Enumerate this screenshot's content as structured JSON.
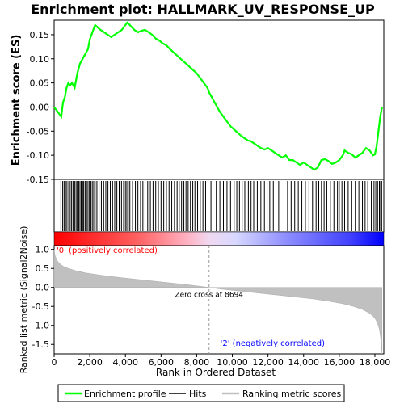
{
  "chart_data": {
    "type": "line",
    "title": "Enrichment plot: HALLMARK_UV_RESPONSE_UP",
    "x_axis": {
      "label": "Rank in Ordered Dataset",
      "range": [
        0,
        18500
      ],
      "ticks": [
        0,
        2000,
        4000,
        6000,
        8000,
        10000,
        12000,
        14000,
        16000,
        18000
      ],
      "tick_labels": [
        "0",
        "2,000",
        "4,000",
        "6,000",
        "8,000",
        "10,000",
        "12,000",
        "14,000",
        "16,000",
        "18,000"
      ]
    },
    "enrichment_panel": {
      "ylabel": "Enrichment score (ES)",
      "ylim": [
        -0.15,
        0.18
      ],
      "y_ticks": [
        -0.15,
        -0.1,
        -0.05,
        0.0,
        0.05,
        0.1,
        0.15
      ],
      "y_tick_labels": [
        "-0.15",
        "-0.10",
        "-0.05",
        "0.00",
        "0.05",
        "0.10",
        "0.15"
      ],
      "line_color": "#00ff00",
      "series": {
        "name": "Enrichment profile",
        "x": [
          0,
          200,
          400,
          500,
          600,
          700,
          800,
          900,
          1000,
          1150,
          1300,
          1450,
          1600,
          1750,
          1900,
          2000,
          2100,
          2200,
          2300,
          2450,
          2600,
          2800,
          3000,
          3200,
          3400,
          3600,
          3800,
          3900,
          4000,
          4100,
          4200,
          4300,
          4500,
          4700,
          4900,
          5100,
          5300,
          5500,
          5700,
          5900,
          6100,
          6300,
          6500,
          6800,
          7100,
          7400,
          7700,
          8000,
          8300,
          8600,
          8700,
          9000,
          9300,
          9600,
          9900,
          10200,
          10500,
          10700,
          10900,
          11000,
          11200,
          11400,
          11600,
          11800,
          12000,
          12200,
          12400,
          12600,
          12800,
          13000,
          13200,
          13400,
          13600,
          13800,
          14000,
          14200,
          14400,
          14600,
          14800,
          15000,
          15200,
          15400,
          15600,
          15800,
          16000,
          16200,
          16300,
          16500,
          16700,
          16900,
          17100,
          17300,
          17500,
          17700,
          17900,
          18000,
          18100,
          18200,
          18300,
          18400
        ],
        "y": [
          0.0,
          -0.01,
          -0.02,
          0.01,
          0.02,
          0.04,
          0.05,
          0.045,
          0.05,
          0.04,
          0.07,
          0.09,
          0.1,
          0.11,
          0.12,
          0.14,
          0.15,
          0.16,
          0.17,
          0.165,
          0.16,
          0.155,
          0.15,
          0.145,
          0.15,
          0.155,
          0.16,
          0.165,
          0.17,
          0.175,
          0.172,
          0.168,
          0.16,
          0.155,
          0.158,
          0.16,
          0.155,
          0.15,
          0.142,
          0.138,
          0.132,
          0.128,
          0.12,
          0.11,
          0.1,
          0.09,
          0.08,
          0.07,
          0.055,
          0.04,
          0.03,
          0.01,
          -0.01,
          -0.025,
          -0.04,
          -0.05,
          -0.06,
          -0.065,
          -0.07,
          -0.07,
          -0.075,
          -0.08,
          -0.085,
          -0.088,
          -0.085,
          -0.09,
          -0.095,
          -0.1,
          -0.105,
          -0.1,
          -0.11,
          -0.11,
          -0.115,
          -0.12,
          -0.115,
          -0.12,
          -0.125,
          -0.13,
          -0.125,
          -0.11,
          -0.108,
          -0.112,
          -0.118,
          -0.115,
          -0.11,
          -0.1,
          -0.09,
          -0.095,
          -0.098,
          -0.105,
          -0.1,
          -0.095,
          -0.085,
          -0.09,
          -0.1,
          -0.098,
          -0.08,
          -0.05,
          -0.02,
          0.0
        ]
      }
    },
    "hits_panel": {
      "ranks": [
        380,
        480,
        560,
        640,
        720,
        820,
        900,
        980,
        1060,
        1150,
        1230,
        1300,
        1380,
        1450,
        1520,
        1600,
        1660,
        1740,
        1820,
        1900,
        1980,
        2060,
        2140,
        2220,
        2300,
        2400,
        2520,
        2650,
        2780,
        2900,
        3020,
        3150,
        3280,
        3400,
        3520,
        3650,
        3780,
        3900,
        4000,
        4080,
        4160,
        4250,
        4400,
        4560,
        4700,
        4850,
        4980,
        5100,
        5250,
        5400,
        5550,
        5700,
        5850,
        6000,
        6150,
        6300,
        6450,
        6600,
        6750,
        6900,
        7020,
        7150,
        7280,
        7400,
        7520,
        7650,
        7780,
        7900,
        8050,
        8200,
        8350,
        8500,
        8800,
        9100,
        9300,
        9500,
        9700,
        9900,
        10100,
        10250,
        10400,
        10550,
        10700,
        10900,
        11050,
        11200,
        11400,
        11600,
        11800,
        11950,
        12100,
        12300,
        12600,
        12900,
        13100,
        13300,
        13500,
        13700,
        13900,
        14100,
        14300,
        14500,
        14700,
        14850,
        15000,
        15150,
        15300,
        15500,
        15700,
        15900,
        16000,
        16150,
        16300,
        16500,
        16700,
        16900,
        17100,
        17300,
        17450,
        17600,
        17800,
        17950,
        18050,
        18150,
        18250,
        18320,
        18380
      ]
    },
    "ranked_metric_panel": {
      "ylabel": "Ranked list metric (Signal2Noise)",
      "ylim": [
        -1.75,
        1.1
      ],
      "y_ticks": [
        -1.5,
        -1.0,
        -0.5,
        0.0,
        0.5,
        1.0
      ],
      "y_tick_labels": [
        "-1.5",
        "-1.0",
        "-0.5",
        "0.0",
        "0.5",
        "1.0"
      ],
      "fill_color": "#c0c0c0",
      "x": [
        0,
        50,
        150,
        300,
        500,
        800,
        1200,
        1800,
        2500,
        3500,
        4500,
        5500,
        6500,
        7500,
        8694,
        9500,
        10500,
        11500,
        12500,
        13500,
        14500,
        15500,
        16200,
        16800,
        17300,
        17700,
        17900,
        18050,
        18150,
        18250,
        18300,
        18350,
        18400
      ],
      "values": [
        1.0,
        0.85,
        0.72,
        0.63,
        0.56,
        0.5,
        0.44,
        0.38,
        0.33,
        0.27,
        0.22,
        0.17,
        0.12,
        0.07,
        0.0,
        -0.05,
        -0.1,
        -0.15,
        -0.2,
        -0.25,
        -0.3,
        -0.37,
        -0.43,
        -0.5,
        -0.58,
        -0.68,
        -0.76,
        -0.85,
        -0.95,
        -1.1,
        -1.25,
        -1.45,
        -1.75
      ],
      "zero_cross_label": "Zero cross at 8694",
      "zero_cross_rank": 8694,
      "positive_label": "'0' (positively correlated)",
      "negative_label": "'2' (negatively correlated)",
      "positive_color": "#ff0000",
      "negative_color": "#0000ff"
    },
    "legend": {
      "placement": "bottom",
      "entries": [
        {
          "label": "Enrichment profile",
          "color": "#00ff00",
          "kind": "line"
        },
        {
          "label": "Hits",
          "color": "#000000",
          "kind": "line"
        },
        {
          "label": "Ranking metric scores",
          "color": "#c0c0c0",
          "kind": "line"
        }
      ]
    }
  }
}
